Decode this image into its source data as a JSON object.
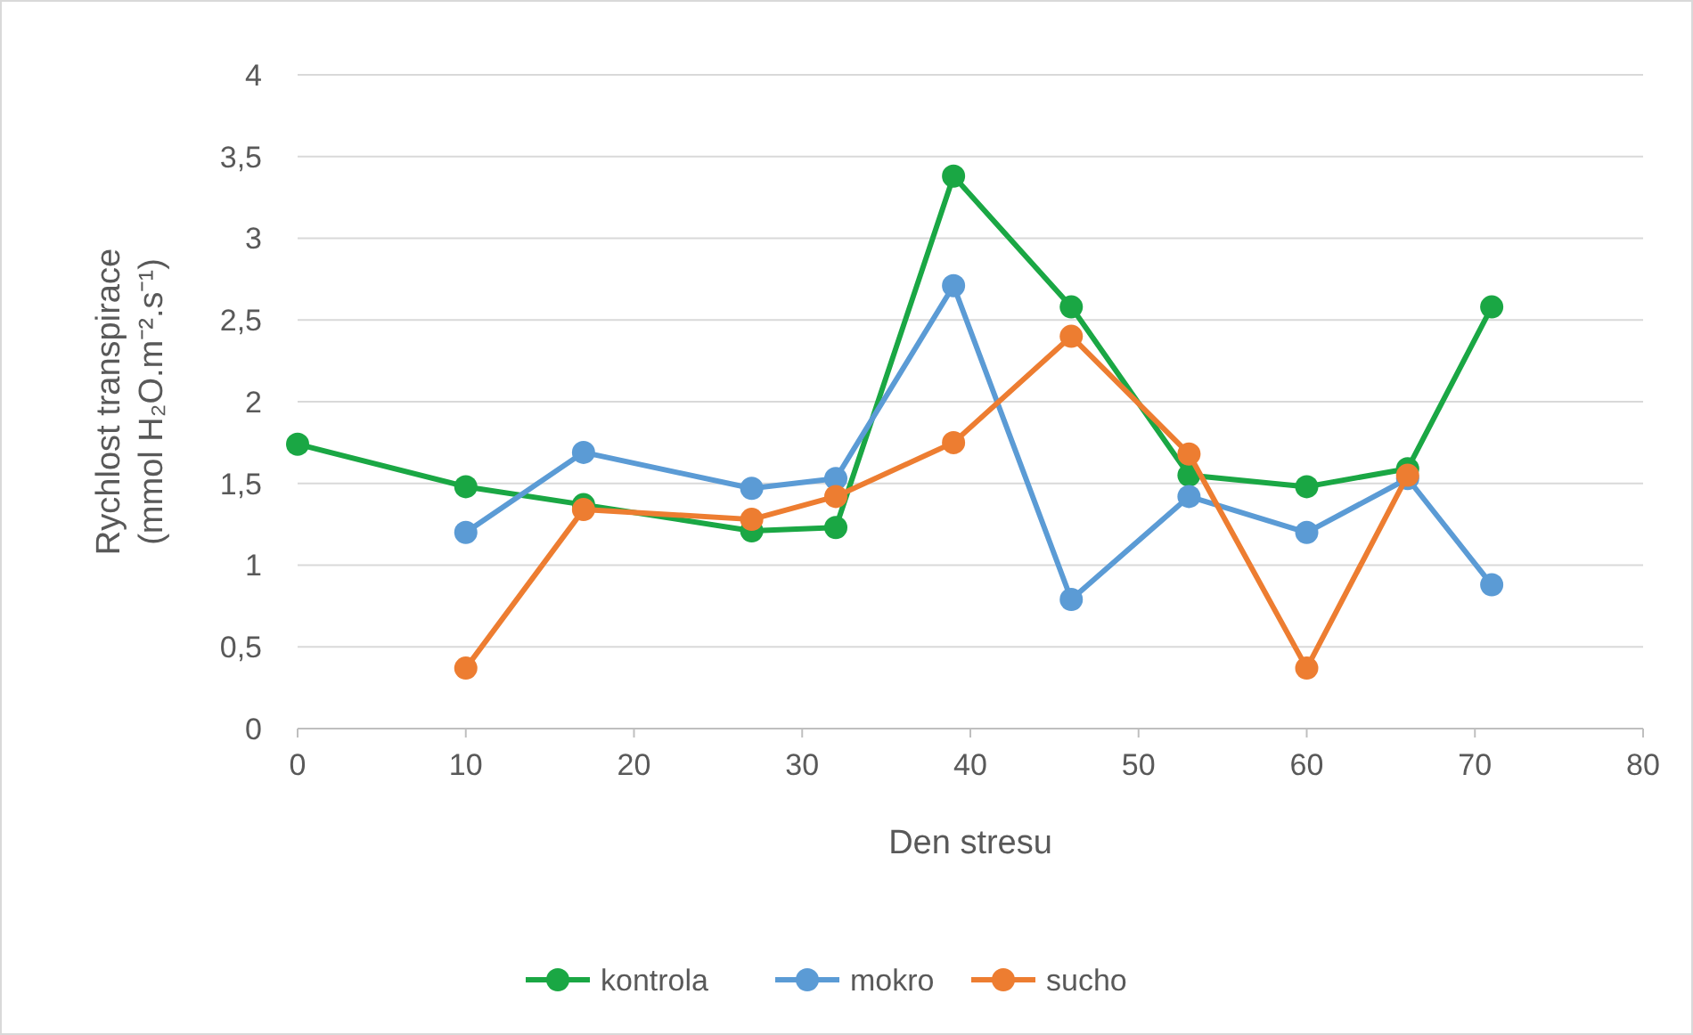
{
  "chart_data": {
    "type": "line",
    "xlabel": "Den stresu",
    "ylabel": "Rychlost transpirace\n(mmol H₂O.m⁻².s⁻¹)",
    "xlim": [
      0,
      80
    ],
    "xticks": [
      0,
      10,
      20,
      30,
      40,
      50,
      60,
      70,
      80
    ],
    "ylim": [
      0,
      4
    ],
    "yticks": [
      0,
      {
        "value": 0.5,
        "label": "0,5"
      },
      1,
      {
        "value": 1.5,
        "label": "1,5"
      },
      2,
      {
        "value": 2.5,
        "label": "2,5"
      },
      3,
      {
        "value": 3.5,
        "label": "3,5"
      },
      4
    ],
    "grid": "y",
    "legend": "bottom",
    "marker": "circle",
    "line_style": "solid",
    "series": [
      {
        "name": "kontrola",
        "color": "#1aa744",
        "x": [
          0,
          10,
          17,
          27,
          32,
          39,
          46,
          53,
          60,
          66,
          71
        ],
        "values": [
          1.74,
          1.48,
          1.37,
          1.21,
          1.23,
          3.38,
          2.58,
          1.55,
          1.48,
          1.59,
          2.58
        ]
      },
      {
        "name": "mokro",
        "color": "#5b9bd5",
        "x": [
          10,
          17,
          27,
          32,
          39,
          46,
          53,
          60,
          66,
          71
        ],
        "values": [
          1.2,
          1.69,
          1.47,
          1.53,
          2.71,
          0.79,
          1.42,
          1.2,
          1.53,
          0.88
        ]
      },
      {
        "name": "sucho",
        "color": "#ed7d31",
        "x": [
          10,
          17,
          27,
          32,
          39,
          46,
          53,
          60,
          66
        ],
        "values": [
          0.37,
          1.34,
          1.28,
          1.42,
          1.75,
          2.4,
          1.68,
          0.37,
          1.55
        ]
      }
    ]
  }
}
